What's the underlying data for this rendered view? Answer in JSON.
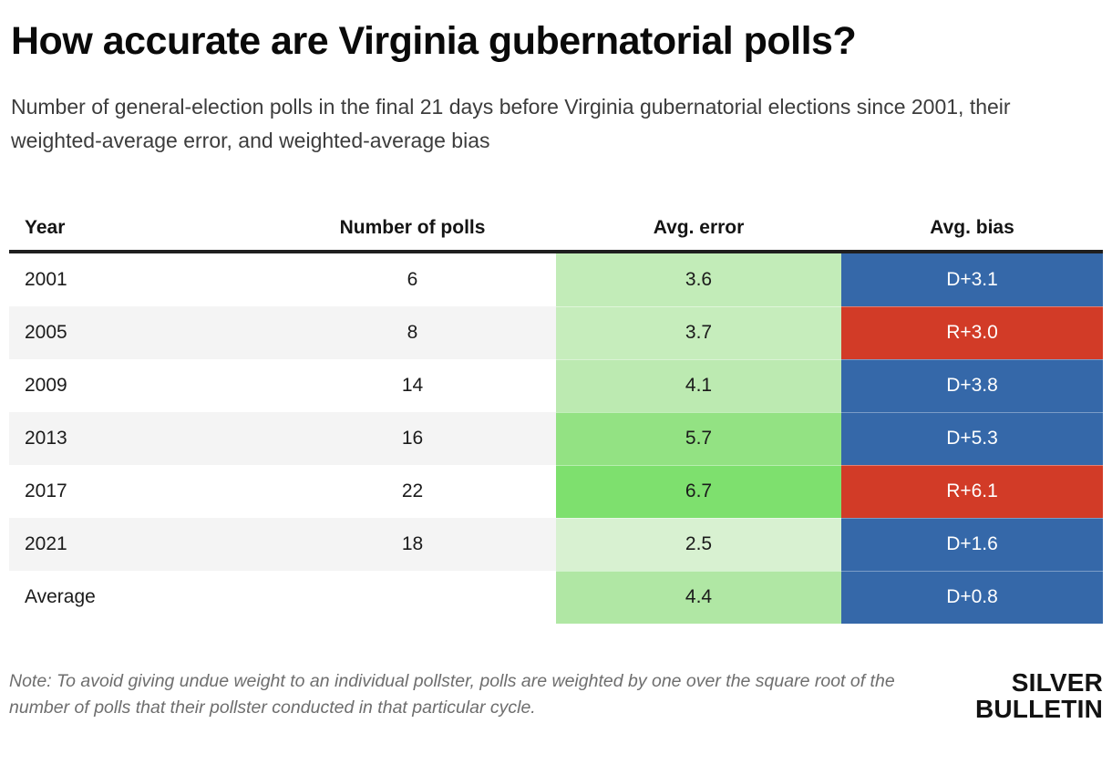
{
  "header": {
    "title": "How accurate are Virginia gubernatorial polls?",
    "subtitle": "Number of general-election polls in the final 21 days before Virginia gubernatorial elections since 2001, their weighted-average error, and weighted-average bias"
  },
  "table": {
    "columns": [
      "Year",
      "Number of polls",
      "Avg. error",
      "Avg. bias"
    ],
    "rows": [
      {
        "year": "2001",
        "polls": "6",
        "error": "3.6",
        "bias": "D+3.1",
        "party": "D",
        "error_color": "#c2ecb8"
      },
      {
        "year": "2005",
        "polls": "8",
        "error": "3.7",
        "bias": "R+3.0",
        "party": "R",
        "error_color": "#c6edbc"
      },
      {
        "year": "2009",
        "polls": "14",
        "error": "4.1",
        "bias": "D+3.8",
        "party": "D",
        "error_color": "#bceab1"
      },
      {
        "year": "2013",
        "polls": "16",
        "error": "5.7",
        "bias": "D+5.3",
        "party": "D",
        "error_color": "#93e283"
      },
      {
        "year": "2017",
        "polls": "22",
        "error": "6.7",
        "bias": "R+6.1",
        "party": "R",
        "error_color": "#7ee06e"
      },
      {
        "year": "2021",
        "polls": "18",
        "error": "2.5",
        "bias": "D+1.6",
        "party": "D",
        "error_color": "#d8f1d1"
      },
      {
        "year": "Average",
        "polls": "",
        "error": "4.4",
        "bias": "D+0.8",
        "party": "D",
        "error_color": "#b0e7a4"
      }
    ]
  },
  "colors": {
    "dem_blue": "#3568a9",
    "rep_red": "#d23b27",
    "stripe_gray": "#f4f4f4",
    "header_rule": "#1f1f1f"
  },
  "footer": {
    "note": "Note: To avoid giving undue weight to an individual pollster, polls are weighted by one over the square root of the number of polls that their pollster conducted in that particular cycle.",
    "logo_line1": "SILVER",
    "logo_line2": "BULLETIN"
  },
  "chart_data": {
    "type": "table",
    "title": "How accurate are Virginia gubernatorial polls?",
    "subtitle": "Number of general-election polls in the final 21 days before Virginia gubernatorial elections since 2001, their weighted-average error, and weighted-average bias",
    "columns": [
      "Year",
      "Number of polls",
      "Avg. error",
      "Avg. bias"
    ],
    "rows": [
      [
        "2001",
        6,
        3.6,
        "D+3.1"
      ],
      [
        "2005",
        8,
        3.7,
        "R+3.0"
      ],
      [
        "2009",
        14,
        4.1,
        "D+3.8"
      ],
      [
        "2013",
        16,
        5.7,
        "D+5.3"
      ],
      [
        "2017",
        22,
        6.7,
        "R+6.1"
      ],
      [
        "2021",
        18,
        2.5,
        "D+1.6"
      ],
      [
        "Average",
        null,
        4.4,
        "D+0.8"
      ]
    ],
    "note": "Note: To avoid giving undue weight to an individual pollster, polls are weighted by one over the square root of the number of polls that their pollster conducted in that particular cycle.",
    "color_encoding": {
      "avg_error": "green shade scales with error magnitude (light = low, saturated = high)",
      "avg_bias": "blue = Democratic-leaning bias (D+), red = Republican-leaning bias (R+)"
    }
  }
}
